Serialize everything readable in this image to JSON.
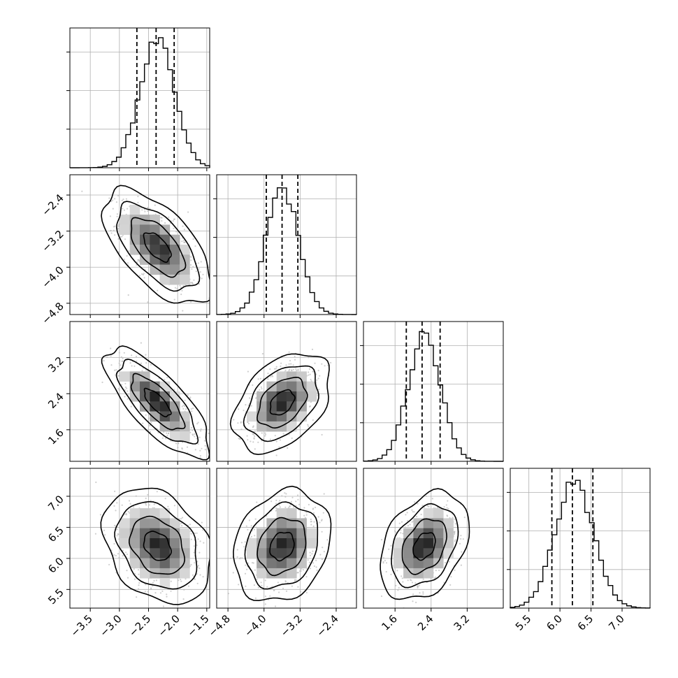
{
  "chart_data": {
    "type": "corner",
    "parameters": 4,
    "grid": true,
    "params": [
      {
        "index": 0,
        "range": [
          -3.85,
          -1.45
        ],
        "ticks": [
          -3.5,
          -3.0,
          -2.5,
          -2.0,
          -1.5
        ],
        "tick_labels": [
          "−3.5",
          "−3.0",
          "−2.5",
          "−2.0",
          "−1.5"
        ],
        "quantiles": [
          -2.7,
          -2.37,
          -2.06
        ],
        "hist_peak": -2.35,
        "hist_sd": 0.3
      },
      {
        "index": 1,
        "range": [
          -5.05,
          -1.95
        ],
        "ticks": [
          -4.8,
          -4.0,
          -3.2,
          -2.4
        ],
        "tick_labels": [
          "−4.8",
          "−4.0",
          "−3.2",
          "−2.4"
        ],
        "quantiles": [
          -3.95,
          -3.6,
          -3.25
        ],
        "hist_peak": -3.6,
        "hist_sd": 0.36
      },
      {
        "index": 2,
        "range": [
          0.9,
          4.0
        ],
        "ticks": [
          1.6,
          2.4,
          3.2
        ],
        "tick_labels": [
          "1.6",
          "2.4",
          "3.2"
        ],
        "quantiles": [
          1.85,
          2.2,
          2.6
        ],
        "hist_peak": 2.25,
        "hist_sd": 0.36
      },
      {
        "index": 3,
        "range": [
          5.2,
          7.45
        ],
        "ticks": [
          5.5,
          6.0,
          6.5,
          7.0
        ],
        "tick_labels": [
          "5.5",
          "6.0",
          "6.5",
          "7.0"
        ],
        "quantiles": [
          5.87,
          6.2,
          6.53
        ],
        "hist_peak": 6.23,
        "hist_sd": 0.31
      }
    ],
    "pairs": [
      {
        "x": 0,
        "y": 1,
        "center": [
          -2.35,
          -3.55
        ],
        "sd": [
          0.32,
          0.44
        ],
        "rho": -0.6
      },
      {
        "x": 0,
        "y": 2,
        "center": [
          -2.35,
          2.2
        ],
        "sd": [
          0.31,
          0.42
        ],
        "rho": -0.75
      },
      {
        "x": 1,
        "y": 2,
        "center": [
          -3.6,
          2.2
        ],
        "sd": [
          0.37,
          0.38
        ],
        "rho": 0.4
      },
      {
        "x": 0,
        "y": 3,
        "center": [
          -2.35,
          6.2
        ],
        "sd": [
          0.32,
          0.32
        ],
        "rho": -0.3
      },
      {
        "x": 1,
        "y": 3,
        "center": [
          -3.6,
          6.2
        ],
        "sd": [
          0.37,
          0.31
        ],
        "rho": 0.2
      },
      {
        "x": 2,
        "y": 3,
        "center": [
          2.25,
          6.2
        ],
        "sd": [
          0.34,
          0.3
        ],
        "rho": 0.35
      }
    ],
    "contour_levels_sigma": [
      0.5,
      1.0,
      1.5,
      2.0
    ],
    "quantile_line_style": "dashed",
    "colors": {
      "line": "#000000",
      "grid": "#b0b0b0",
      "points": "#bbbbbb"
    }
  }
}
